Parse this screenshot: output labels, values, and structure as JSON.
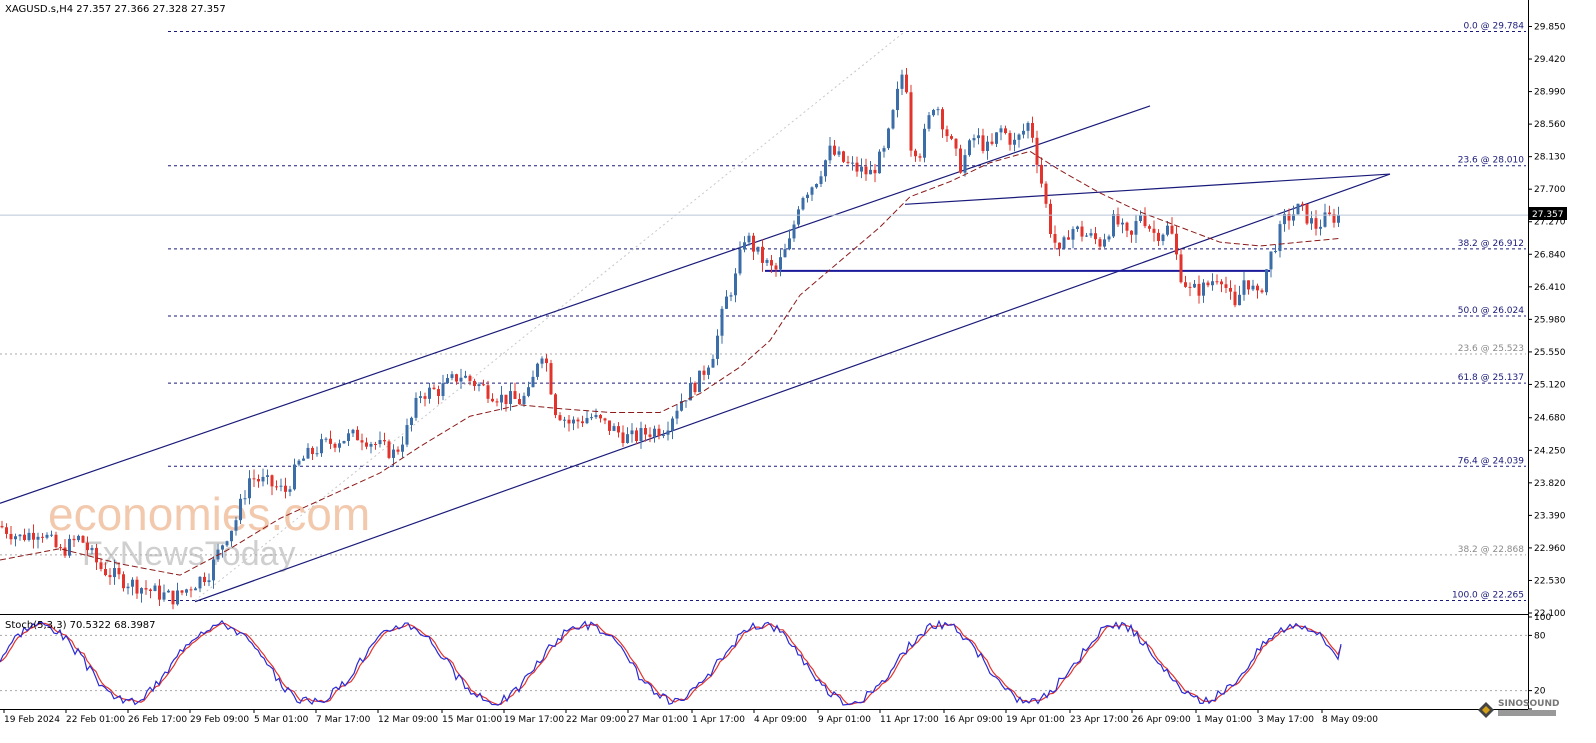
{
  "header": {
    "symbol_ohlc": "XAGUSD.s,H4  27.357 27.366 27.328 27.357"
  },
  "watermark": {
    "line1": "economies.com",
    "line2": "FxNewsToday"
  },
  "logo_text": "SINOSOUND",
  "stoch_label": "Stoch(5,3,3) 70.5322 68.3987",
  "colors": {
    "bull": "#3b6ea8",
    "bear": "#e2342d",
    "ma": "#8b1a1a",
    "channel": "#1a1a7a",
    "stoch_main": "#2a2ad6",
    "stoch_signal": "#e2342d"
  },
  "chart_data": {
    "type": "candlestick",
    "symbol": "XAGUSD.s",
    "timeframe": "H4",
    "ylim": [
      22.1,
      30.2
    ],
    "yticks": [
      "29.850",
      "29.420",
      "28.990",
      "28.560",
      "28.130",
      "27.700",
      "27.270",
      "26.840",
      "26.410",
      "25.980",
      "25.550",
      "25.120",
      "24.680",
      "24.250",
      "23.820",
      "23.390",
      "22.960",
      "22.530",
      "22.100"
    ],
    "xticks": [
      "19 Feb 2024",
      "22 Feb 01:00",
      "26 Feb 17:00",
      "29 Feb 09:00",
      "5 Mar 01:00",
      "7 Mar 17:00",
      "12 Mar 09:00",
      "15 Mar 01:00",
      "19 Mar 17:00",
      "22 Mar 09:00",
      "27 Mar 01:00",
      "1 Apr 17:00",
      "4 Apr 09:00",
      "9 Apr 01:00",
      "11 Apr 17:00",
      "16 Apr 09:00",
      "19 Apr 01:00",
      "23 Apr 17:00",
      "26 Apr 09:00",
      "1 May 01:00",
      "3 May 17:00",
      "8 May 09:00"
    ],
    "current_price": "27.357",
    "close_path": [
      [
        0,
        23.25
      ],
      [
        20,
        23.1
      ],
      [
        40,
        23.2
      ],
      [
        60,
        22.9
      ],
      [
        80,
        23.1
      ],
      [
        100,
        22.7
      ],
      [
        120,
        22.55
      ],
      [
        140,
        22.45
      ],
      [
        160,
        22.35
      ],
      [
        175,
        22.3
      ],
      [
        190,
        22.45
      ],
      [
        210,
        22.65
      ],
      [
        225,
        23.1
      ],
      [
        235,
        23.3
      ],
      [
        250,
        23.9
      ],
      [
        270,
        23.8
      ],
      [
        285,
        23.7
      ],
      [
        300,
        24.1
      ],
      [
        320,
        24.3
      ],
      [
        340,
        24.4
      ],
      [
        360,
        24.45
      ],
      [
        380,
        24.3
      ],
      [
        395,
        24.2
      ],
      [
        410,
        24.6
      ],
      [
        420,
        25.0
      ],
      [
        440,
        25.05
      ],
      [
        460,
        25.25
      ],
      [
        480,
        25.1
      ],
      [
        500,
        24.95
      ],
      [
        520,
        24.9
      ],
      [
        530,
        25.0
      ],
      [
        540,
        25.6
      ],
      [
        545,
        25.5
      ],
      [
        555,
        24.8
      ],
      [
        570,
        24.6
      ],
      [
        590,
        24.7
      ],
      [
        610,
        24.55
      ],
      [
        630,
        24.4
      ],
      [
        650,
        24.5
      ],
      [
        665,
        24.55
      ],
      [
        680,
        24.9
      ],
      [
        700,
        25.2
      ],
      [
        715,
        25.6
      ],
      [
        725,
        26.2
      ],
      [
        735,
        26.5
      ],
      [
        745,
        27.1
      ],
      [
        760,
        26.8
      ],
      [
        775,
        26.6
      ],
      [
        790,
        27.0
      ],
      [
        800,
        27.6
      ],
      [
        815,
        27.8
      ],
      [
        830,
        28.2
      ],
      [
        850,
        28.0
      ],
      [
        870,
        27.9
      ],
      [
        885,
        28.2
      ],
      [
        895,
        28.8
      ],
      [
        905,
        29.4
      ],
      [
        910,
        28.3
      ],
      [
        920,
        28.2
      ],
      [
        935,
        28.9
      ],
      [
        945,
        28.5
      ],
      [
        960,
        28.0
      ],
      [
        975,
        28.4
      ],
      [
        990,
        28.2
      ],
      [
        1000,
        28.5
      ],
      [
        1015,
        28.3
      ],
      [
        1030,
        28.6
      ],
      [
        1040,
        27.9
      ],
      [
        1050,
        27.2
      ],
      [
        1060,
        26.8
      ],
      [
        1070,
        27.2
      ],
      [
        1085,
        27.1
      ],
      [
        1100,
        27.0
      ],
      [
        1115,
        27.3
      ],
      [
        1130,
        27.0
      ],
      [
        1140,
        27.4
      ],
      [
        1155,
        27.1
      ],
      [
        1170,
        27.2
      ],
      [
        1180,
        26.6
      ],
      [
        1190,
        26.35
      ],
      [
        1205,
        26.4
      ],
      [
        1220,
        26.6
      ],
      [
        1235,
        26.1
      ],
      [
        1245,
        26.55
      ],
      [
        1258,
        26.25
      ],
      [
        1270,
        26.8
      ],
      [
        1285,
        27.3
      ],
      [
        1300,
        27.45
      ],
      [
        1315,
        27.2
      ],
      [
        1325,
        27.3
      ],
      [
        1340,
        27.357
      ]
    ],
    "moving_average_path": [
      [
        0,
        22.8
      ],
      [
        60,
        22.95
      ],
      [
        120,
        22.75
      ],
      [
        180,
        22.6
      ],
      [
        230,
        22.95
      ],
      [
        280,
        23.35
      ],
      [
        330,
        23.65
      ],
      [
        380,
        23.95
      ],
      [
        420,
        24.3
      ],
      [
        470,
        24.7
      ],
      [
        520,
        24.85
      ],
      [
        560,
        24.8
      ],
      [
        610,
        24.75
      ],
      [
        660,
        24.75
      ],
      [
        700,
        25.0
      ],
      [
        740,
        25.35
      ],
      [
        770,
        25.7
      ],
      [
        800,
        26.3
      ],
      [
        840,
        26.75
      ],
      [
        880,
        27.2
      ],
      [
        910,
        27.6
      ],
      [
        950,
        27.8
      ],
      [
        990,
        28.05
      ],
      [
        1030,
        28.2
      ],
      [
        1060,
        27.95
      ],
      [
        1100,
        27.65
      ],
      [
        1140,
        27.4
      ],
      [
        1180,
        27.2
      ],
      [
        1220,
        27.0
      ],
      [
        1260,
        26.95
      ],
      [
        1300,
        27.0
      ],
      [
        1340,
        27.05
      ]
    ],
    "fibonacci_levels": [
      {
        "label": "0.0 @ 29.784",
        "price": 29.784,
        "style": "solid-set"
      },
      {
        "label": "23.6 @ 28.010",
        "price": 28.01,
        "style": "solid-set"
      },
      {
        "label": "38.2 @ 26.912",
        "price": 26.912,
        "style": "solid-set"
      },
      {
        "label": "50.0 @ 26.024",
        "price": 26.024,
        "style": "solid-set"
      },
      {
        "label": "23.6 @ 25.523",
        "price": 25.523,
        "style": "grey-set"
      },
      {
        "label": "61.8 @ 25.137",
        "price": 25.137,
        "style": "solid-set"
      },
      {
        "label": "76.4 @ 24.039",
        "price": 24.039,
        "style": "solid-set"
      },
      {
        "label": "38.2 @ 22.868",
        "price": 22.868,
        "style": "grey-set"
      },
      {
        "label": "100.0 @ 22.265",
        "price": 22.265,
        "style": "solid-set"
      }
    ],
    "support_line": {
      "price": 26.62,
      "from": 765,
      "to": 1270
    },
    "channel": {
      "upper": [
        [
          0,
          23.55
        ],
        [
          1150,
          28.8
        ]
      ],
      "lower": [
        [
          195,
          22.25
        ],
        [
          1390,
          27.9
        ]
      ],
      "mid": [
        [
          905,
          27.5
        ],
        [
          1390,
          27.9
        ]
      ]
    },
    "stochastic": {
      "params": "5,3,3",
      "main": 70.5322,
      "signal": 68.3987,
      "levels": [
        80,
        20
      ],
      "ylim": [
        0,
        100
      ],
      "yticks": [
        "100",
        "80",
        "20",
        "0"
      ]
    }
  }
}
